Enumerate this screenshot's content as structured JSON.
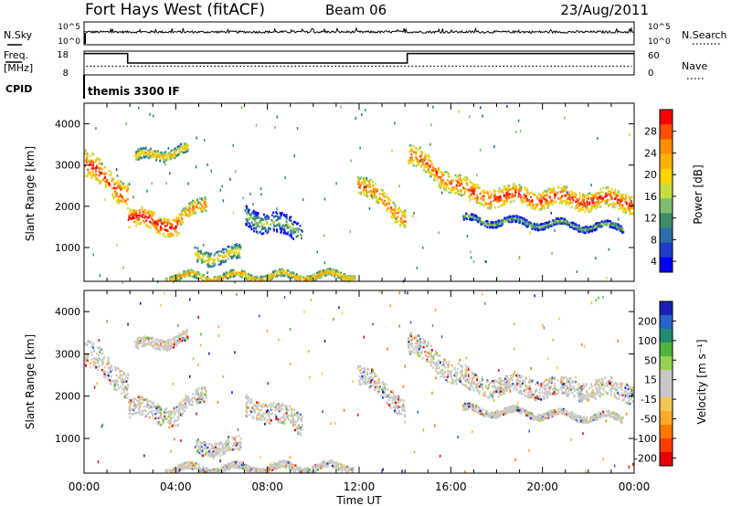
{
  "header": {
    "station": "Fort Hays West (fitACF)",
    "beam": "Beam 06",
    "date": "23/Aug/2011"
  },
  "panels": {
    "noise": {
      "left_label": "N.Sky",
      "right_label": "N.Search",
      "left_ticks": [
        "10^5",
        "10^0"
      ],
      "right_ticks": [
        "10^5",
        "10^0"
      ]
    },
    "freq": {
      "left_label_1": "Freq.",
      "left_label_2": "[MHz]",
      "right_label": "Nave",
      "left_ticks": [
        "18",
        "8"
      ],
      "right_ticks": [
        "60",
        "0"
      ]
    },
    "cpid": {
      "label": "CPID",
      "value": "themis 3300 IF"
    }
  },
  "axes": {
    "xlabel": "Time UT",
    "ylabel": "Slant Range [km]",
    "xticks": [
      "00:00",
      "04:00",
      "08:00",
      "12:00",
      "16:00",
      "20:00",
      "00:00"
    ],
    "yticks": [
      "4000",
      "3000",
      "2000",
      "1000"
    ]
  },
  "colorbars": {
    "power": {
      "label": "Power [dB]",
      "ticks": [
        "28",
        "24",
        "20",
        "16",
        "12",
        "8",
        "4"
      ],
      "colors": [
        "#ff0000",
        "#ff5000",
        "#ff8c00",
        "#ffb000",
        "#ffd200",
        "#c8dc3c",
        "#7cbe6e",
        "#3c8c64",
        "#2a6eaa",
        "#1e3cc8",
        "#0000ff"
      ]
    },
    "velocity": {
      "label": "Velocity [m s⁻¹]",
      "ticks": [
        "200",
        "100",
        "50",
        "15",
        "-15",
        "-50",
        "-100",
        "-200"
      ],
      "colors": [
        "#1e1eb4",
        "#2864c8",
        "#1e8c6e",
        "#50b43c",
        "#96d250",
        "#c8c8c8",
        "#c8c8c8",
        "#f0c850",
        "#ffaa28",
        "#ff7800",
        "#ff3c00",
        "#e60000"
      ]
    }
  },
  "chart_data": {
    "type": "heatmap",
    "x_range_hours": [
      0,
      24
    ],
    "y_range_km": [
      180,
      4500
    ],
    "noise_ylim_log10": [
      0,
      5
    ],
    "freq_ylim_mhz": [
      8,
      18
    ],
    "nave_ylim": [
      0,
      60
    ],
    "frequency_steps": [
      {
        "start": 0,
        "end": 1.9,
        "mhz": 17
      },
      {
        "start": 1.9,
        "end": 14.1,
        "mhz": 13
      },
      {
        "start": 14.1,
        "end": 24,
        "mhz": 17
      }
    ],
    "nave_level": 22,
    "noise_sky_log10": 2.8,
    "echo_bands": [
      {
        "t0": 0.0,
        "t1": 1.9,
        "r0": 3050,
        "r1": 2300,
        "w": 600,
        "p": 22
      },
      {
        "t0": 1.9,
        "t1": 4.1,
        "r0": 1750,
        "r1": 1550,
        "w": 450,
        "p": 24
      },
      {
        "t0": 4.1,
        "t1": 5.3,
        "r0": 1650,
        "r1": 2150,
        "w": 350,
        "p": 18
      },
      {
        "t0": 2.2,
        "t1": 4.5,
        "r0": 3200,
        "r1": 3400,
        "w": 250,
        "p": 14
      },
      {
        "t0": 4.8,
        "t1": 6.8,
        "r0": 800,
        "r1": 850,
        "w": 350,
        "p": 12
      },
      {
        "t0": 3.5,
        "t1": 11.8,
        "r0": 300,
        "r1": 350,
        "w": 160,
        "p": 16
      },
      {
        "t0": 11.9,
        "t1": 14.0,
        "r0": 2600,
        "r1": 1750,
        "w": 450,
        "p": 20
      },
      {
        "t0": 14.1,
        "t1": 16.8,
        "r0": 3300,
        "r1": 2350,
        "w": 500,
        "p": 20
      },
      {
        "t0": 16.8,
        "t1": 24.0,
        "r0": 2300,
        "r1": 2150,
        "w": 450,
        "p": 22
      },
      {
        "t0": 16.5,
        "t1": 23.5,
        "r0": 1700,
        "r1": 1500,
        "w": 150,
        "p": 6
      },
      {
        "t0": 7.0,
        "t1": 9.5,
        "r0": 1800,
        "r1": 1400,
        "w": 500,
        "p": 6
      }
    ]
  }
}
